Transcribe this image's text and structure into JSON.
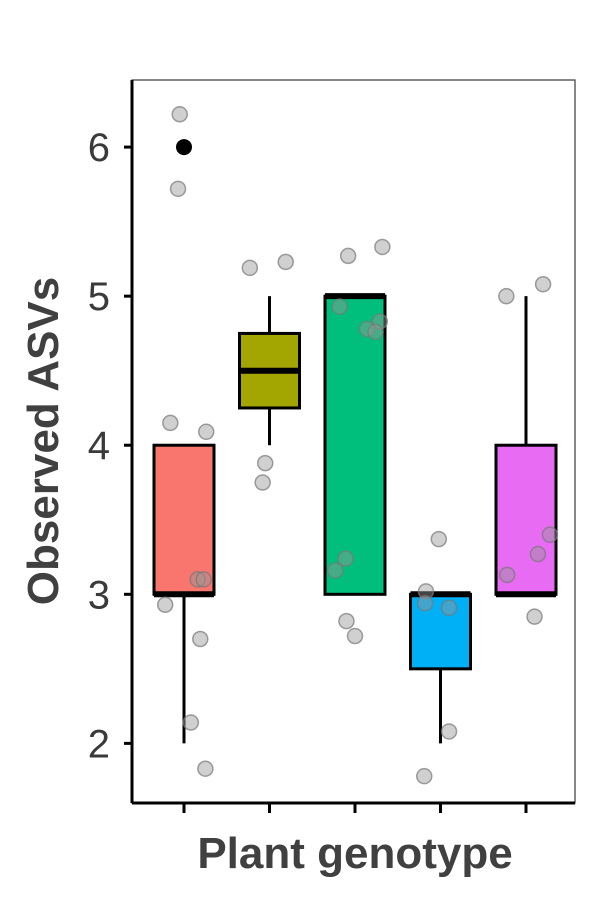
{
  "chart_data": {
    "type": "box",
    "xlabel": "Plant genotype",
    "ylabel": "Observed ASVs",
    "ylim": [
      1.6,
      6.45
    ],
    "yticks": [
      2,
      3,
      4,
      5,
      6
    ],
    "grid": false,
    "legend": "none",
    "boxes": [
      {
        "color": "#F8766D",
        "q1": 3,
        "median": 3,
        "q3": 4,
        "whisker_low": 2,
        "whisker_high": 4,
        "outliers": [
          6
        ]
      },
      {
        "color": "#A3A500",
        "q1": 4.25,
        "median": 4.5,
        "q3": 4.75,
        "whisker_low": 4,
        "whisker_high": 5,
        "outliers": []
      },
      {
        "color": "#00BF7D",
        "q1": 3,
        "median": 5,
        "q3": 5,
        "whisker_low": 3,
        "whisker_high": 5,
        "outliers": []
      },
      {
        "color": "#00B0F6",
        "q1": 2.5,
        "median": 3,
        "q3": 3,
        "whisker_low": 2,
        "whisker_high": 3,
        "outliers": []
      },
      {
        "color": "#E76BF3",
        "q1": 3,
        "median": 3,
        "q3": 4,
        "whisker_low": 3,
        "whisker_high": 5,
        "outliers": []
      }
    ],
    "jitter_points": [
      [
        0.95,
        6.22
      ],
      [
        0.93,
        5.72
      ],
      [
        0.84,
        4.15
      ],
      [
        1.26,
        4.09
      ],
      [
        1.16,
        3.1
      ],
      [
        1.23,
        3.1
      ],
      [
        0.78,
        2.93
      ],
      [
        1.19,
        2.7
      ],
      [
        1.08,
        2.14
      ],
      [
        1.25,
        1.83
      ],
      [
        1.77,
        5.19
      ],
      [
        2.19,
        5.23
      ],
      [
        1.95,
        3.88
      ],
      [
        1.92,
        3.75
      ],
      [
        2.92,
        5.27
      ],
      [
        3.32,
        5.33
      ],
      [
        2.82,
        4.93
      ],
      [
        3.14,
        4.78
      ],
      [
        3.29,
        4.83
      ],
      [
        3.24,
        4.76
      ],
      [
        2.89,
        3.24
      ],
      [
        2.77,
        3.16
      ],
      [
        2.9,
        2.82
      ],
      [
        3.0,
        2.72
      ],
      [
        3.98,
        3.37
      ],
      [
        3.83,
        3.02
      ],
      [
        3.82,
        2.94
      ],
      [
        4.1,
        2.91
      ],
      [
        4.1,
        2.08
      ],
      [
        3.81,
        1.78
      ],
      [
        4.77,
        5.0
      ],
      [
        5.2,
        5.08
      ],
      [
        5.28,
        3.4
      ],
      [
        5.14,
        3.27
      ],
      [
        4.78,
        3.13
      ],
      [
        5.1,
        2.85
      ]
    ]
  }
}
